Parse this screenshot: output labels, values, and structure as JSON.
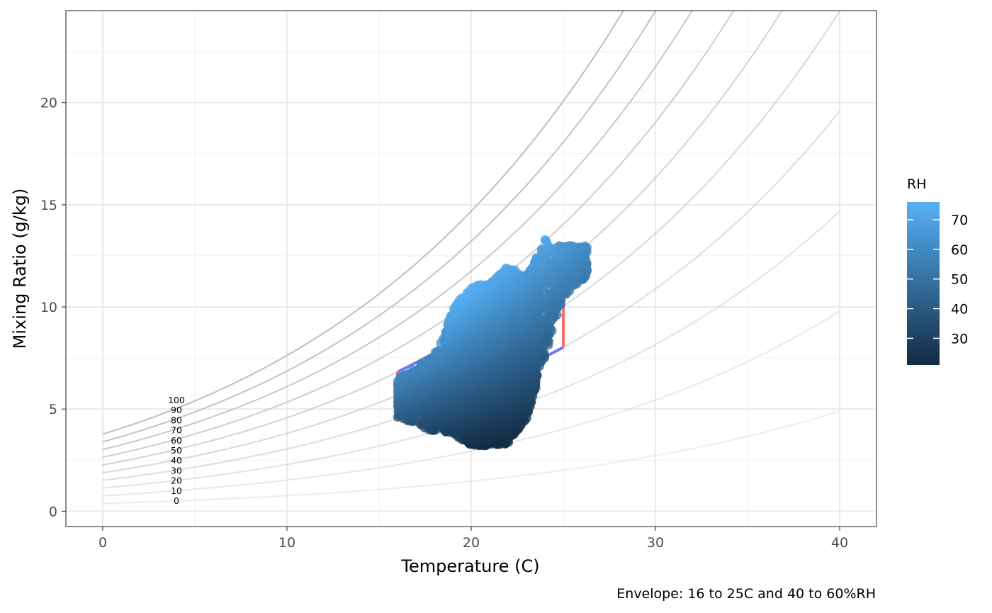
{
  "chart_data": {
    "type": "scatter",
    "xlabel": "Temperature (C)",
    "ylabel": "Mixing Ratio (g/kg)",
    "xlim": [
      -2,
      42
    ],
    "ylim": [
      -0.75,
      24.5
    ],
    "x_ticks": [
      0,
      10,
      20,
      30,
      40
    ],
    "y_ticks": [
      0,
      5,
      10,
      15,
      20
    ],
    "x_tick_labels": [
      "0",
      "10",
      "20",
      "30",
      "40"
    ],
    "y_tick_labels": [
      "0",
      "5",
      "10",
      "15",
      "20"
    ],
    "grid": true,
    "theme": "bw",
    "rh_curves": {
      "levels": [
        0,
        10,
        20,
        30,
        40,
        50,
        60,
        70,
        80,
        90,
        100
      ],
      "labels": [
        "0",
        "10",
        "20",
        "30",
        "40",
        "50",
        "60",
        "70",
        "80",
        "90",
        "100"
      ],
      "x_range": [
        0,
        40
      ],
      "values_at_0C": [
        0.37,
        0.75,
        1.12,
        1.5,
        1.88,
        2.25,
        2.63,
        3.0,
        3.38,
        3.75
      ],
      "label_x": 4,
      "color": "#bebebe"
    },
    "envelope": {
      "temp_min": 16,
      "temp_max": 25,
      "rh_min": 40,
      "rh_max": 60,
      "rh_line_color": "#7373f5",
      "temp_line_color": "#f07070"
    },
    "points": {
      "color_variable": "RH",
      "approx_count": 4000,
      "color_low": "#132b43",
      "color_high": "#56b1f7",
      "color_range": [
        21,
        76
      ],
      "cluster_shape": [
        [
          16.0,
          4.6,
          6.5
        ],
        [
          17.0,
          4.2,
          7.0
        ],
        [
          18.0,
          3.9,
          7.8
        ],
        [
          18.5,
          3.9,
          8.5
        ],
        [
          19.0,
          3.7,
          10.0
        ],
        [
          20.0,
          3.2,
          11.0
        ],
        [
          21.0,
          3.2,
          11.2
        ],
        [
          22.0,
          3.3,
          12.0
        ],
        [
          23.0,
          4.5,
          11.5
        ],
        [
          24.0,
          7.5,
          13.3
        ],
        [
          25.0,
          10.5,
          13.0
        ],
        [
          26.3,
          11.5,
          13.0
        ]
      ]
    },
    "legend": {
      "title": "RH",
      "position": "right",
      "breaks": [
        30,
        40,
        50,
        60,
        70
      ],
      "break_labels": [
        "30",
        "40",
        "50",
        "60",
        "70"
      ]
    },
    "caption": "Envelope: 16 to 25C and 40 to 60%RH"
  }
}
